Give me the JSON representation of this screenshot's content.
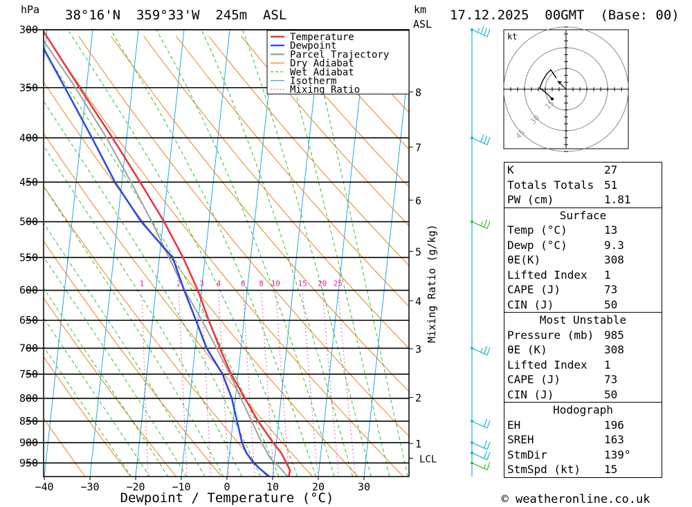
{
  "header": {
    "hpa_label": "hPa",
    "location": "38°16'N  359°33'W  245m  ASL",
    "km_label": "km",
    "asl_label": "ASL",
    "datetime": "17.12.2025  00GMT  (Base: 00)"
  },
  "footer": {
    "copyright": "© weatheronline.co.uk"
  },
  "chart_data": {
    "type": "line",
    "title": "Skew-T log-P diagram",
    "xlabel": "Dewpoint / Temperature (°C)",
    "ylabel": "hPa",
    "xlim": [
      -40,
      40
    ],
    "ylim_hpa": [
      985,
      300
    ],
    "x_ticks": [
      "−40",
      "−30",
      "−20",
      "−10",
      "0",
      "10",
      "20",
      "30"
    ],
    "x_tick_values": [
      -40,
      -30,
      -20,
      -10,
      0,
      10,
      20,
      30
    ],
    "pressure_levels": [
      300,
      350,
      400,
      450,
      500,
      550,
      600,
      650,
      700,
      750,
      800,
      850,
      900,
      950
    ],
    "pressure_labels": [
      "300",
      "350",
      "400",
      "450",
      "500",
      "550",
      "600",
      "650",
      "700",
      "750",
      "800",
      "850",
      "900",
      "950"
    ],
    "km_ticks": [
      {
        "label": "1",
        "p": 902
      },
      {
        "label": "2",
        "p": 798
      },
      {
        "label": "3",
        "p": 701
      },
      {
        "label": "4",
        "p": 617
      },
      {
        "label": "5",
        "p": 541
      },
      {
        "label": "6",
        "p": 472
      },
      {
        "label": "7",
        "p": 410
      },
      {
        "label": "8",
        "p": 354
      }
    ],
    "lcl": {
      "label": "LCL",
      "p": 938
    },
    "mixing_ratio_label": "Mixing Ratio (g/kg)",
    "mixing_ratio_lines": [
      {
        "label": "1",
        "w": 1
      },
      {
        "label": "2",
        "w": 2
      },
      {
        "label": "3",
        "w": 3
      },
      {
        "label": "4",
        "w": 4
      },
      {
        "label": "6",
        "w": 6
      },
      {
        "label": "8",
        "w": 8
      },
      {
        "label": "10",
        "w": 10
      },
      {
        "label": "15",
        "w": 15
      },
      {
        "label": "20",
        "w": 20
      },
      {
        "label": "25",
        "w": 25
      }
    ],
    "legend": {
      "position": "top-right",
      "entries": [
        {
          "label": "Temperature",
          "color": "#e8373d",
          "style": "solid"
        },
        {
          "label": "Dewpoint",
          "color": "#2d4bdc",
          "style": "solid"
        },
        {
          "label": "Parcel Trajectory",
          "color": "#a0a0a0",
          "style": "solid"
        },
        {
          "label": "Dry Adiabat",
          "color": "#e8821a",
          "style": "solid"
        },
        {
          "label": "Wet Adiabat",
          "color": "#2cbf2c",
          "style": "dashed"
        },
        {
          "label": "Isotherm",
          "color": "#22a7e6",
          "style": "solid"
        },
        {
          "label": "Mixing Ratio",
          "color": "#e2249c",
          "style": "dotted"
        }
      ]
    },
    "series": [
      {
        "name": "Temperature",
        "color": "#e8373d",
        "points": [
          [
            985,
            13.5
          ],
          [
            970,
            13.7
          ],
          [
            950,
            12.7
          ],
          [
            925,
            11.3
          ],
          [
            900,
            9.3
          ],
          [
            850,
            5.5
          ],
          [
            800,
            2.1
          ],
          [
            750,
            -1.5
          ],
          [
            700,
            -4.6
          ],
          [
            650,
            -7.7
          ],
          [
            600,
            -10.8
          ],
          [
            550,
            -14.8
          ],
          [
            500,
            -19.8
          ],
          [
            450,
            -26.0
          ],
          [
            400,
            -33.1
          ],
          [
            350,
            -41.5
          ],
          [
            300,
            -51.0
          ]
        ]
      },
      {
        "name": "Dewpoint",
        "color": "#2d4bdc",
        "points": [
          [
            985,
            9.3
          ],
          [
            970,
            7.6
          ],
          [
            950,
            5.5
          ],
          [
            925,
            3.7
          ],
          [
            900,
            2.5
          ],
          [
            850,
            0.9
          ],
          [
            800,
            -0.8
          ],
          [
            750,
            -3.4
          ],
          [
            700,
            -7.5
          ],
          [
            650,
            -10.5
          ],
          [
            600,
            -13.8
          ],
          [
            550,
            -17.1
          ],
          [
            500,
            -24.8
          ],
          [
            450,
            -31.5
          ],
          [
            400,
            -37.6
          ],
          [
            350,
            -44.7
          ],
          [
            300,
            -53.0
          ]
        ]
      },
      {
        "name": "Parcel Trajectory",
        "color": "#a0a0a0",
        "points": [
          [
            985,
            13.3
          ],
          [
            960,
            11.2
          ],
          [
            938,
            9.0
          ],
          [
            900,
            6.8
          ],
          [
            850,
            4.1
          ],
          [
            800,
            1.2
          ],
          [
            750,
            -1.8
          ],
          [
            700,
            -5.3
          ],
          [
            650,
            -9.2
          ],
          [
            600,
            -13.7
          ],
          [
            550,
            -17.9
          ],
          [
            500,
            -22.5
          ],
          [
            450,
            -28.0
          ],
          [
            400,
            -34.4
          ],
          [
            350,
            -42.4
          ],
          [
            300,
            -52.4
          ]
        ]
      }
    ],
    "wind_barbs": [
      {
        "p": 300,
        "speed_kt": 35,
        "color": "#18b7cc"
      },
      {
        "p": 400,
        "speed_kt": 30,
        "color": "#18b7cc"
      },
      {
        "p": 500,
        "speed_kt": 25,
        "color": "#2cbf2c"
      },
      {
        "p": 700,
        "speed_kt": 25,
        "color": "#18b7cc"
      },
      {
        "p": 850,
        "speed_kt": 20,
        "color": "#18b7cc"
      },
      {
        "p": 900,
        "speed_kt": 20,
        "color": "#18b7cc"
      },
      {
        "p": 925,
        "speed_kt": 20,
        "color": "#18b7cc"
      },
      {
        "p": 950,
        "speed_kt": 15,
        "color": "#2cbf2c"
      }
    ],
    "hodograph": {
      "unit_label": "kt",
      "ring_labels": [
        "15",
        "30",
        "45"
      ],
      "ring_values_kt": [
        15,
        30,
        45
      ],
      "wind_points_kt": [
        [
          -10,
          -7
        ],
        [
          -14,
          -3
        ],
        [
          -19,
          1
        ],
        [
          -17,
          6
        ],
        [
          -14,
          11
        ],
        [
          -11,
          14
        ],
        [
          -9,
          11
        ],
        [
          -7,
          8
        ]
      ],
      "storm_motion_kt": [
        -6,
        6
      ]
    }
  },
  "indices": {
    "k_label": "K",
    "k_value": "27",
    "tt_label": "Totals Totals",
    "tt_value": "51",
    "pw_label": "PW (cm)",
    "pw_value": "1.81"
  },
  "surface": {
    "title": "Surface",
    "temp_label": "Temp (°C)",
    "temp_value": "13",
    "dewp_label": "Dewp (°C)",
    "dewp_value": "9.3",
    "theta_label": "θE(K)",
    "theta_value": "308",
    "li_label": "Lifted Index",
    "li_value": "1",
    "cape_label": "CAPE (J)",
    "cape_value": "73",
    "cin_label": "CIN (J)",
    "cin_value": "50"
  },
  "most_unstable": {
    "title": "Most Unstable",
    "pressure_label": "Pressure (mb)",
    "pressure_value": "985",
    "theta_label": "θE (K)",
    "theta_value": "308",
    "li_label": "Lifted Index",
    "li_value": "1",
    "cape_label": "CAPE (J)",
    "cape_value": "73",
    "cin_label": "CIN (J)",
    "cin_value": "50"
  },
  "hodograph_table": {
    "title": "Hodograph",
    "eh_label": "EH",
    "eh_value": "196",
    "sreh_label": "SREH",
    "sreh_value": "163",
    "stmdir_label": "StmDir",
    "stmdir_value": "139°",
    "stmspd_label": "StmSpd (kt)",
    "stmspd_value": "15"
  }
}
